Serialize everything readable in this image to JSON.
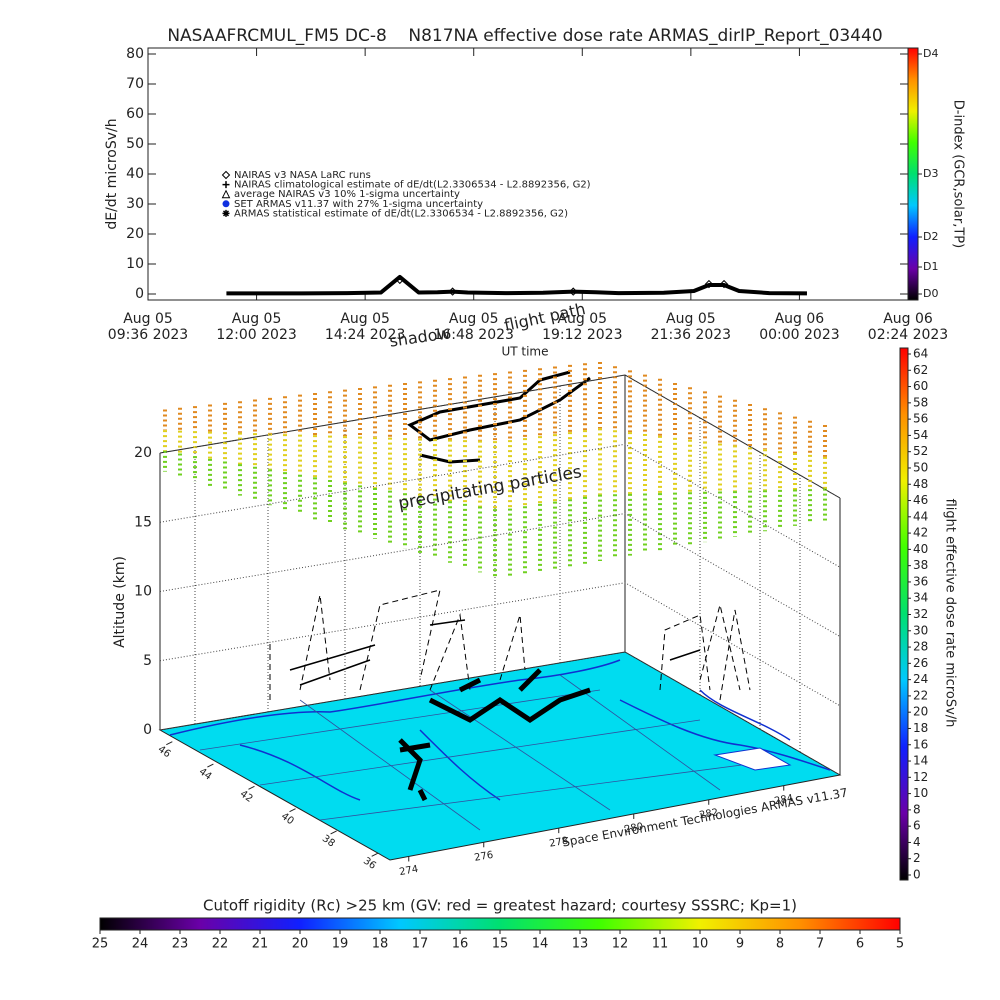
{
  "chart_data": {
    "type": "line",
    "title": "NASAAFRCMUL_FM5 DC-8    N817NA effective dose rate ARMAS_dirIP_Report_03440",
    "ylabel": "dE/dt microSv/h",
    "xlabel": "UT time",
    "x": [
      "2023-08-05T11:20",
      "2023-08-05T12:00",
      "2023-08-05T13:00",
      "2023-08-05T14:00",
      "2023-08-05T14:45",
      "2023-08-05T15:10",
      "2023-08-05T15:35",
      "2023-08-05T16:00",
      "2023-08-05T16:20",
      "2023-08-05T16:40",
      "2023-08-05T17:30",
      "2023-08-05T18:20",
      "2023-08-05T19:00",
      "2023-08-05T19:30",
      "2023-08-05T20:00",
      "2023-08-05T21:00",
      "2023-08-05T21:40",
      "2023-08-05T22:00",
      "2023-08-05T22:20",
      "2023-08-05T22:40",
      "2023-08-05T23:20",
      "2023-08-06T00:10"
    ],
    "series": [
      {
        "name": "NAIRAS v3 NASA LaRC runs",
        "marker": "diamond",
        "color": "#000000",
        "values": [
          null,
          null,
          null,
          null,
          null,
          4.7,
          null,
          null,
          0.8,
          null,
          null,
          null,
          0.8,
          null,
          null,
          null,
          null,
          3.3,
          3.3,
          null,
          null,
          null
        ]
      },
      {
        "name": "NAIRAS climatological estimate of dE/dt(L2.3306534 - L2.8892356, G2)",
        "marker": "plus",
        "color": "#000000",
        "values": [
          null,
          null,
          null,
          null,
          null,
          null,
          null,
          null,
          null,
          null,
          null,
          null,
          null,
          null,
          null,
          null,
          null,
          null,
          null,
          null,
          null,
          null
        ]
      },
      {
        "name": "average NAIRAS v3 10% 1-sigma uncertainty",
        "marker": "triangle",
        "color": "#000000",
        "values": [
          null,
          null,
          null,
          null,
          null,
          null,
          null,
          null,
          null,
          null,
          null,
          null,
          null,
          null,
          null,
          null,
          null,
          null,
          null,
          null,
          null,
          null
        ]
      },
      {
        "name": "SET ARMAS v11.37 with 27% 1-sigma uncertainty",
        "marker": "circle",
        "color": "#1030e0",
        "values": [
          null,
          null,
          null,
          null,
          null,
          null,
          null,
          null,
          null,
          null,
          null,
          null,
          null,
          null,
          null,
          null,
          null,
          null,
          null,
          null,
          null,
          null
        ]
      },
      {
        "name": "ARMAS statistical estimate of dE/dt(L2.3306534 - L2.8892356, G2)",
        "marker": "asterisk",
        "color": "#000000",
        "values": [
          0.2,
          0.2,
          0.2,
          0.3,
          0.5,
          5.7,
          0.5,
          0.6,
          0.8,
          0.5,
          0.3,
          0.4,
          0.8,
          0.6,
          0.3,
          0.4,
          1,
          3,
          3,
          1,
          0.3,
          0.2
        ]
      }
    ],
    "xlim": [
      "2023-08-05T09:36",
      "2023-08-06T02:24"
    ],
    "xticks": [
      {
        "value": "2023-08-05T09:36",
        "label": [
          "Aug 05",
          "09:36 2023"
        ]
      },
      {
        "value": "2023-08-05T12:00",
        "label": [
          "Aug 05",
          "12:00 2023"
        ]
      },
      {
        "value": "2023-08-05T14:24",
        "label": [
          "Aug 05",
          "14:24 2023"
        ]
      },
      {
        "value": "2023-08-05T16:48",
        "label": [
          "Aug 05",
          "16:48 2023"
        ]
      },
      {
        "value": "2023-08-05T19:12",
        "label": [
          "Aug 05",
          "19:12 2023"
        ]
      },
      {
        "value": "2023-08-05T21:36",
        "label": [
          "Aug 05",
          "21:36 2023"
        ]
      },
      {
        "value": "2023-08-06T00:00",
        "label": [
          "Aug 06",
          "00:00 2023"
        ]
      },
      {
        "value": "2023-08-06T02:24",
        "label": [
          "Aug 06",
          "02:24 2023"
        ]
      }
    ],
    "ylim": [
      -2,
      82
    ],
    "yticks": [
      0,
      10,
      20,
      30,
      40,
      50,
      60,
      70,
      80
    ],
    "annotations": [
      "shadow",
      "flight path"
    ],
    "dindex_label": "D-index (GCR,solar,TP)",
    "dindex_ticks": [
      {
        "value": 0,
        "label": "D0"
      },
      {
        "value": 9,
        "label": "D1"
      },
      {
        "value": 19,
        "label": "D2"
      },
      {
        "value": 40,
        "label": "D3"
      },
      {
        "value": 80,
        "label": "D4"
      }
    ]
  },
  "colormap": [
    "#000000",
    "#6a00a8",
    "#1020ff",
    "#00c8ff",
    "#00e070",
    "#40ff00",
    "#f0f000",
    "#ff9000",
    "#ff0000"
  ],
  "panel3d": {
    "zlabel": "Altitude (km)",
    "zlim": [
      0,
      20
    ],
    "zticks": [
      0,
      5,
      10,
      15,
      20
    ],
    "lat_ticks": [
      46,
      44,
      42,
      40,
      38,
      36
    ],
    "latlim": [
      46.6,
      35.4
    ],
    "lon_ticks": [
      274,
      276,
      278,
      280,
      282,
      284
    ],
    "lonlim": [
      273.5,
      285.5
    ],
    "annotation": "precipitating particles",
    "credit": "Space Environment Technologies ARMAS v11.37"
  },
  "dose_bar": {
    "label": "flight effective dose rate microSv/h",
    "lim": [
      0,
      64
    ],
    "ticks": [
      0,
      2,
      4,
      6,
      8,
      10,
      12,
      14,
      16,
      18,
      20,
      22,
      24,
      26,
      28,
      30,
      32,
      34,
      36,
      38,
      40,
      42,
      44,
      46,
      48,
      50,
      52,
      54,
      56,
      58,
      60,
      62,
      64
    ]
  },
  "rigidity_bar": {
    "title": "Cutoff rigidity (Rc) >25 km (GV: red = greatest hazard; courtesy SSSRC; Kp=1)",
    "lim": [
      25,
      5
    ],
    "ticks": [
      25,
      24,
      23,
      22,
      21,
      20,
      19,
      18,
      17,
      16,
      15,
      14,
      13,
      12,
      11,
      10,
      9,
      8,
      7,
      6,
      5
    ]
  }
}
